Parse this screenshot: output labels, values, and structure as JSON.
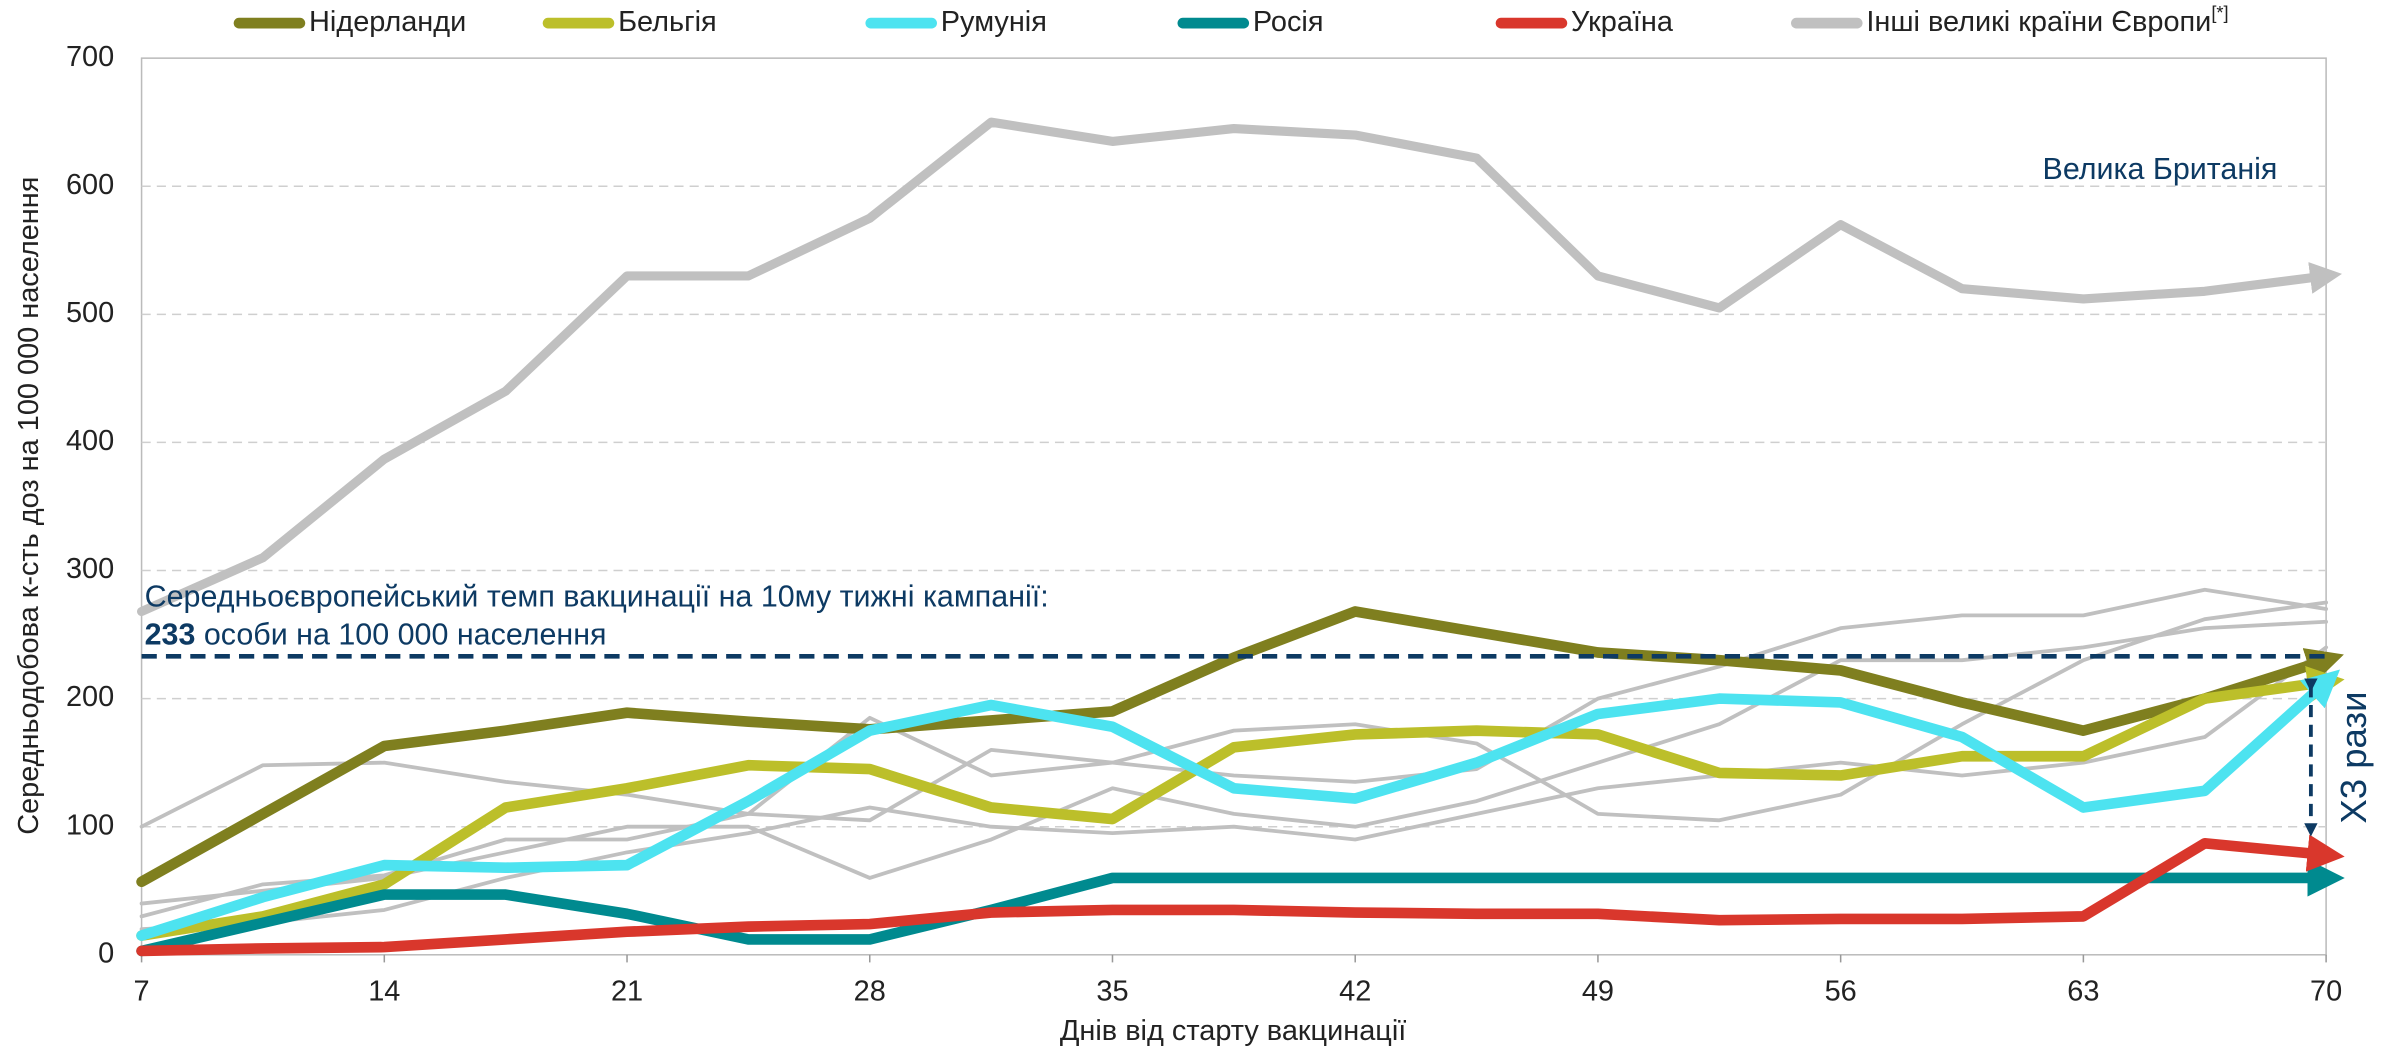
{
  "chart_data": {
    "type": "line",
    "xlabel": "Днів від старту вакцинації",
    "ylabel": "Середньодобова к-сть доз на 100 000 населення",
    "x": [
      7,
      10.5,
      14,
      17.5,
      21,
      24.5,
      28,
      31.5,
      35,
      38.5,
      42,
      45.5,
      49,
      52.5,
      56,
      59.5,
      63,
      66.5,
      70
    ],
    "xlim": [
      7,
      70
    ],
    "xticks": [
      7,
      14,
      21,
      28,
      35,
      42,
      49,
      56,
      63,
      70
    ],
    "ylim": [
      0,
      700
    ],
    "yticks": [
      0,
      100,
      200,
      300,
      400,
      500,
      600,
      700
    ],
    "grid": true,
    "legend": "top",
    "series": [
      {
        "name": "Нідерланди",
        "color": "#7f7f1f",
        "values": [
          57,
          110,
          163,
          175,
          189,
          182,
          176,
          183,
          190,
          232,
          268,
          252,
          236,
          230,
          222,
          197,
          175,
          200,
          230
        ]
      },
      {
        "name": "Бельгія",
        "color": "#bcbf2a",
        "values": [
          15,
          30,
          55,
          115,
          130,
          148,
          145,
          115,
          106,
          162,
          172,
          175,
          172,
          142,
          140,
          155,
          155,
          200,
          213
        ]
      },
      {
        "name": "Румунія",
        "color": "#4de3f0",
        "values": [
          15,
          45,
          70,
          68,
          70,
          120,
          175,
          195,
          178,
          130,
          122,
          150,
          188,
          200,
          197,
          170,
          115,
          128,
          213
        ]
      },
      {
        "name": "Росія",
        "color": "#008a8f",
        "values": [
          3,
          25,
          47,
          47,
          32,
          12,
          12,
          35,
          60,
          60,
          60,
          60,
          60,
          60,
          60,
          60,
          60,
          60,
          60
        ]
      },
      {
        "name": "Україна",
        "color": "#d9372c",
        "values": [
          3,
          5,
          6,
          12,
          18,
          22,
          24,
          33,
          35,
          35,
          33,
          32,
          32,
          27,
          28,
          28,
          30,
          87,
          78
        ]
      },
      {
        "name": "Інші великі країни Європи",
        "note": "[*]",
        "color": "#c0c0c0",
        "lines": [
          [
            100,
            148,
            150,
            135,
            125,
            110,
            185,
            140,
            150,
            175,
            180,
            165,
            110,
            105,
            125,
            180,
            230,
            262,
            275
          ],
          [
            30,
            55,
            62,
            90,
            90,
            110,
            105,
            160,
            150,
            140,
            135,
            145,
            200,
            225,
            255,
            265,
            265,
            285,
            270
          ],
          [
            40,
            50,
            60,
            80,
            100,
            100,
            60,
            90,
            130,
            110,
            100,
            120,
            150,
            180,
            230,
            230,
            240,
            255,
            260
          ],
          [
            20,
            25,
            35,
            60,
            80,
            95,
            115,
            100,
            95,
            100,
            90,
            110,
            130,
            140,
            150,
            140,
            150,
            170,
            240
          ]
        ]
      },
      {
        "name": "Велика Британія",
        "color": "#c0c0c0",
        "in_legend": false,
        "values": [
          268,
          310,
          387,
          440,
          530,
          530,
          575,
          650,
          635,
          645,
          640,
          622,
          530,
          505,
          570,
          520,
          512,
          518,
          530
        ]
      }
    ],
    "reference": {
      "value": 233,
      "color": "#0d3a63",
      "text": "Середньоєвропейський темп вакцинації на 10му тижні кампанії:",
      "value_suffix": "особи на 100 000 населення"
    },
    "ratio_annotation": "Х3 рази"
  }
}
